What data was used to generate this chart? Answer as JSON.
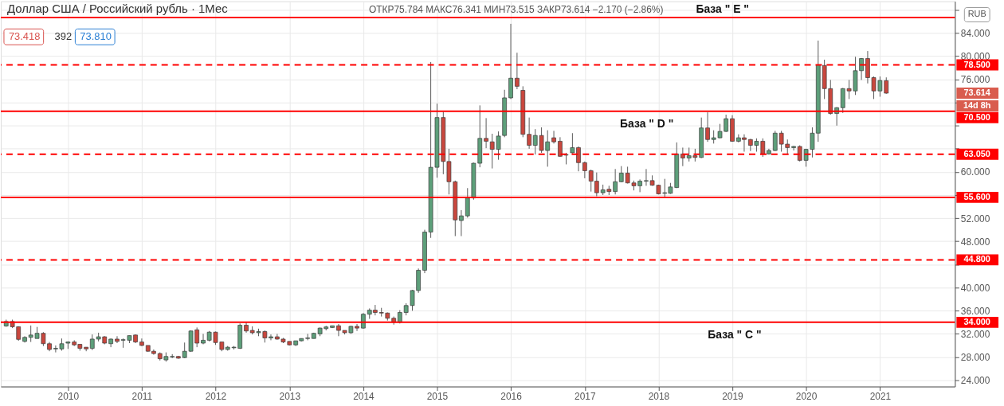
{
  "chart_data": {
    "type": "candlestick",
    "title": "Доллар США / Российский рубль · 1Мес",
    "subtitle": "ОТКР75.784 МАКС76.341 МИН73.515 ЗАКР73.614 −2.170 (−2.86%)",
    "ylabel": "RUB",
    "x": [
      "2009-03",
      "2009-04",
      "2009-05",
      "2009-06",
      "2009-07",
      "2009-08",
      "2009-09",
      "2009-10",
      "2009-11",
      "2009-12",
      "2010-01",
      "2010-02",
      "2010-03",
      "2010-04",
      "2010-05",
      "2010-06",
      "2010-07",
      "2010-08",
      "2010-09",
      "2010-10",
      "2010-11",
      "2010-12",
      "2011-01",
      "2011-02",
      "2011-03",
      "2011-04",
      "2011-05",
      "2011-06",
      "2011-07",
      "2011-08",
      "2011-09",
      "2011-10",
      "2011-11",
      "2011-12",
      "2012-01",
      "2012-02",
      "2012-03",
      "2012-04",
      "2012-05",
      "2012-06",
      "2012-07",
      "2012-08",
      "2012-09",
      "2012-10",
      "2012-11",
      "2012-12",
      "2013-01",
      "2013-02",
      "2013-03",
      "2013-04",
      "2013-05",
      "2013-06",
      "2013-07",
      "2013-08",
      "2013-09",
      "2013-10",
      "2013-11",
      "2013-12",
      "2014-01",
      "2014-02",
      "2014-03",
      "2014-04",
      "2014-05",
      "2014-06",
      "2014-07",
      "2014-08",
      "2014-09",
      "2014-10",
      "2014-11",
      "2014-12",
      "2015-01",
      "2015-02",
      "2015-03",
      "2015-04",
      "2015-05",
      "2015-06",
      "2015-07",
      "2015-08",
      "2015-09",
      "2015-10",
      "2015-11",
      "2015-12",
      "2016-01",
      "2016-02",
      "2016-03",
      "2016-04",
      "2016-05",
      "2016-06",
      "2016-07",
      "2016-08",
      "2016-09",
      "2016-10",
      "2016-11",
      "2016-12",
      "2017-01",
      "2017-02",
      "2017-03",
      "2017-04",
      "2017-05",
      "2017-06",
      "2017-07",
      "2017-08",
      "2017-09",
      "2017-10",
      "2017-11",
      "2017-12",
      "2018-01",
      "2018-02",
      "2018-03",
      "2018-04",
      "2018-05",
      "2018-06",
      "2018-07",
      "2018-08",
      "2018-09",
      "2018-10",
      "2018-11",
      "2018-12",
      "2019-01",
      "2019-02",
      "2019-03",
      "2019-04",
      "2019-05",
      "2019-06",
      "2019-07",
      "2019-08",
      "2019-09",
      "2019-10",
      "2019-11",
      "2019-12",
      "2020-01",
      "2020-02",
      "2020-03",
      "2020-04",
      "2020-05",
      "2020-06",
      "2020-07",
      "2020-08",
      "2020-09",
      "2020-10",
      "2020-11",
      "2020-12",
      "2021-01",
      "2021-02"
    ],
    "ohlc": [
      [
        33.36,
        34.46,
        33.23,
        34.14
      ],
      [
        34.14,
        34.46,
        33.0,
        33.23
      ],
      [
        33.23,
        33.3,
        30.8,
        31.05
      ],
      [
        30.7,
        31.6,
        30.5,
        31.4
      ],
      [
        31.4,
        33.45,
        30.6,
        31.8
      ],
      [
        31.2,
        33.2,
        31.2,
        32.1
      ],
      [
        32.1,
        32.3,
        29.9,
        30.3
      ],
      [
        30.3,
        30.6,
        29.0,
        29.3
      ],
      [
        29.4,
        30.0,
        28.8,
        29.5
      ],
      [
        29.4,
        31.2,
        29.1,
        30.3
      ],
      [
        30.4,
        30.7,
        29.4,
        30.6
      ],
      [
        30.6,
        30.9,
        29.9,
        30.1
      ],
      [
        30.2,
        30.2,
        29.1,
        29.5
      ],
      [
        29.7,
        29.7,
        29.0,
        29.4
      ],
      [
        29.5,
        31.9,
        29.2,
        31.1
      ],
      [
        31.1,
        32.2,
        30.7,
        31.5
      ],
      [
        31.5,
        31.6,
        30.2,
        30.4
      ],
      [
        30.3,
        31.2,
        29.7,
        31.1
      ],
      [
        31.1,
        31.6,
        30.4,
        30.7
      ],
      [
        30.9,
        31.2,
        29.6,
        31.0
      ],
      [
        30.9,
        31.7,
        30.4,
        31.7
      ],
      [
        31.8,
        31.9,
        30.4,
        30.6
      ],
      [
        30.6,
        31.2,
        29.9,
        30.0
      ],
      [
        30.0,
        30.0,
        28.9,
        29.0
      ],
      [
        29.0,
        29.3,
        28.4,
        28.6
      ],
      [
        28.6,
        28.8,
        27.4,
        27.7
      ],
      [
        27.5,
        28.8,
        27.2,
        28.1
      ],
      [
        28.0,
        28.5,
        27.8,
        28.1
      ],
      [
        28.1,
        28.2,
        27.7,
        27.8
      ],
      [
        27.9,
        30.5,
        27.8,
        29.0
      ],
      [
        29.0,
        32.6,
        28.9,
        32.5
      ],
      [
        32.7,
        33.1,
        29.7,
        30.4
      ],
      [
        30.4,
        32.0,
        30.2,
        30.9
      ],
      [
        30.9,
        32.5,
        30.7,
        32.3
      ],
      [
        32.3,
        32.4,
        30.1,
        30.5
      ],
      [
        30.6,
        30.6,
        29.0,
        29.3
      ],
      [
        29.3,
        29.9,
        29.1,
        29.7
      ],
      [
        29.6,
        29.9,
        29.3,
        29.7
      ],
      [
        29.5,
        33.8,
        29.4,
        33.5
      ],
      [
        33.5,
        34.0,
        32.2,
        32.5
      ],
      [
        32.6,
        33.3,
        31.9,
        32.2
      ],
      [
        32.2,
        32.9,
        31.6,
        32.4
      ],
      [
        32.4,
        32.6,
        30.5,
        31.3
      ],
      [
        31.3,
        31.9,
        30.9,
        31.5
      ],
      [
        31.5,
        32.0,
        31.0,
        31.1
      ],
      [
        31.1,
        31.3,
        30.4,
        30.6
      ],
      [
        30.7,
        30.7,
        30.0,
        30.1
      ],
      [
        30.1,
        30.8,
        29.9,
        30.8
      ],
      [
        30.8,
        31.2,
        30.7,
        31.2
      ],
      [
        31.2,
        32.0,
        30.9,
        31.3
      ],
      [
        31.2,
        32.2,
        31.2,
        32.1
      ],
      [
        32.0,
        33.1,
        31.6,
        33.0
      ],
      [
        32.9,
        33.4,
        32.6,
        33.2
      ],
      [
        33.1,
        33.4,
        33.0,
        33.4
      ],
      [
        33.4,
        33.7,
        31.6,
        32.6
      ],
      [
        32.6,
        32.6,
        31.9,
        32.2
      ],
      [
        32.2,
        33.4,
        32.0,
        33.3
      ],
      [
        33.3,
        33.7,
        32.5,
        33.0
      ],
      [
        33.0,
        35.6,
        32.9,
        35.4
      ],
      [
        35.4,
        36.4,
        34.6,
        36.1
      ],
      [
        36.1,
        37.0,
        35.2,
        35.7
      ],
      [
        35.7,
        36.5,
        35.0,
        35.6
      ],
      [
        35.6,
        35.7,
        34.3,
        34.7
      ],
      [
        34.7,
        35.0,
        33.6,
        34.0
      ],
      [
        34.0,
        36.1,
        33.8,
        35.7
      ],
      [
        35.7,
        37.3,
        35.2,
        36.9
      ],
      [
        36.9,
        39.6,
        36.0,
        39.5
      ],
      [
        39.5,
        43.3,
        39.1,
        43.0
      ],
      [
        43.0,
        50.0,
        42.5,
        49.6
      ],
      [
        49.6,
        79.0,
        48.6,
        60.8
      ],
      [
        60.8,
        71.8,
        59.0,
        69.4
      ],
      [
        69.4,
        70.4,
        59.6,
        61.8
      ],
      [
        61.8,
        64.0,
        56.1,
        58.3
      ],
      [
        58.3,
        58.5,
        48.9,
        51.7
      ],
      [
        51.6,
        53.4,
        48.9,
        52.4
      ],
      [
        52.4,
        57.2,
        52.1,
        55.5
      ],
      [
        55.5,
        61.6,
        55.2,
        61.5
      ],
      [
        61.5,
        71.5,
        60.8,
        65.8
      ],
      [
        65.8,
        69.3,
        64.1,
        65.3
      ],
      [
        65.2,
        66.6,
        60.6,
        63.9
      ],
      [
        63.9,
        67.0,
        62.1,
        66.2
      ],
      [
        66.3,
        74.2,
        66.0,
        72.8
      ],
      [
        72.8,
        85.6,
        72.6,
        76.2
      ],
      [
        76.2,
        80.6,
        74.3,
        74.8
      ],
      [
        74.1,
        74.8,
        66.0,
        66.5
      ],
      [
        66.5,
        69.4,
        64.0,
        64.6
      ],
      [
        64.6,
        67.4,
        63.0,
        66.3
      ],
      [
        66.3,
        67.7,
        63.3,
        63.7
      ],
      [
        63.7,
        67.2,
        60.9,
        65.2
      ],
      [
        65.9,
        67.1,
        64.9,
        65.2
      ],
      [
        65.3,
        66.0,
        62.6,
        62.7
      ],
      [
        62.9,
        63.3,
        61.3,
        63.0
      ],
      [
        63.3,
        66.7,
        63.2,
        64.2
      ],
      [
        64.2,
        64.4,
        60.1,
        61.6
      ],
      [
        61.6,
        61.8,
        58.9,
        60.2
      ],
      [
        60.2,
        60.4,
        56.6,
        58.4
      ],
      [
        58.4,
        59.9,
        55.8,
        56.4
      ],
      [
        56.4,
        57.8,
        56.0,
        56.9
      ],
      [
        57.0,
        57.6,
        56.0,
        56.6
      ],
      [
        56.6,
        60.5,
        56.1,
        58.3
      ],
      [
        58.3,
        61.0,
        58.2,
        59.8
      ],
      [
        59.8,
        60.9,
        58.0,
        58.1
      ],
      [
        58.1,
        58.5,
        56.8,
        57.6
      ],
      [
        57.6,
        58.7,
        56.5,
        58.4
      ],
      [
        58.4,
        60.5,
        57.6,
        58.5
      ],
      [
        58.5,
        59.4,
        57.6,
        57.7
      ],
      [
        57.7,
        57.8,
        56.1,
        56.2
      ],
      [
        56.3,
        58.8,
        55.6,
        56.4
      ],
      [
        56.3,
        58.1,
        56.2,
        57.4
      ],
      [
        57.3,
        65.1,
        57.2,
        63.1
      ],
      [
        63.1,
        64.2,
        61.0,
        62.4
      ],
      [
        62.4,
        64.2,
        61.8,
        62.8
      ],
      [
        62.8,
        64.0,
        61.8,
        62.5
      ],
      [
        62.5,
        69.4,
        62.4,
        67.6
      ],
      [
        67.6,
        70.3,
        65.2,
        65.6
      ],
      [
        65.6,
        67.2,
        64.9,
        65.9
      ],
      [
        65.9,
        68.3,
        65.8,
        67.0
      ],
      [
        67.0,
        69.9,
        66.9,
        69.2
      ],
      [
        69.2,
        69.8,
        65.2,
        65.3
      ],
      [
        65.3,
        66.5,
        65.1,
        65.9
      ],
      [
        65.9,
        66.5,
        63.5,
        65.6
      ],
      [
        65.6,
        65.7,
        63.6,
        64.6
      ],
      [
        64.6,
        65.8,
        63.5,
        65.3
      ],
      [
        65.3,
        65.8,
        62.6,
        63.1
      ],
      [
        63.1,
        64.0,
        63.0,
        63.7
      ],
      [
        63.7,
        67.1,
        63.6,
        66.7
      ],
      [
        66.7,
        67.1,
        63.5,
        64.8
      ],
      [
        64.8,
        65.6,
        63.1,
        64.2
      ],
      [
        64.2,
        64.5,
        63.7,
        64.4
      ],
      [
        64.4,
        64.6,
        61.8,
        62.0
      ],
      [
        62.0,
        64.0,
        60.9,
        63.9
      ],
      [
        63.9,
        67.7,
        62.5,
        66.7
      ],
      [
        66.7,
        82.7,
        65.2,
        78.5
      ],
      [
        78.4,
        79.4,
        72.6,
        74.4
      ],
      [
        74.4,
        75.9,
        69.9,
        70.1
      ],
      [
        70.1,
        71.2,
        68.0,
        71.1
      ],
      [
        71.1,
        74.5,
        70.2,
        74.4
      ],
      [
        74.4,
        75.9,
        72.6,
        74.0
      ],
      [
        74.0,
        79.9,
        73.3,
        77.5
      ],
      [
        77.5,
        79.7,
        75.9,
        79.6
      ],
      [
        79.6,
        80.9,
        75.3,
        76.3
      ],
      [
        76.3,
        76.5,
        72.6,
        74.0
      ],
      [
        74.0,
        76.5,
        73.0,
        75.8
      ],
      [
        75.784,
        76.341,
        73.515,
        73.614
      ]
    ],
    "colors": [
      "#5d9f7a",
      "#c9473e",
      "#c9473e",
      "#5d9f7a",
      "#5d9f7a",
      "#5d9f7a",
      "#c9473e",
      "#c9473e",
      "#5d9f7a",
      "#5d9f7a",
      "#5d9f7a",
      "#c9473e",
      "#c9473e",
      "#c9473e",
      "#5d9f7a",
      "#5d9f7a",
      "#c9473e",
      "#5d9f7a",
      "#c9473e",
      "#5d9f7a",
      "#5d9f7a",
      "#c9473e",
      "#c9473e",
      "#c9473e",
      "#c9473e",
      "#c9473e",
      "#5d9f7a",
      "#5d9f7a",
      "#c9473e",
      "#5d9f7a",
      "#5d9f7a",
      "#c9473e",
      "#5d9f7a",
      "#5d9f7a",
      "#c9473e",
      "#c9473e",
      "#5d9f7a",
      "#5d9f7a",
      "#5d9f7a",
      "#c9473e",
      "#c9473e",
      "#5d9f7a",
      "#c9473e",
      "#5d9f7a",
      "#c9473e",
      "#c9473e",
      "#c9473e",
      "#5d9f7a",
      "#5d9f7a",
      "#5d9f7a",
      "#5d9f7a",
      "#5d9f7a",
      "#5d9f7a",
      "#5d9f7a",
      "#c9473e",
      "#c9473e",
      "#5d9f7a",
      "#c9473e",
      "#5d9f7a",
      "#5d9f7a",
      "#c9473e",
      "#c9473e",
      "#c9473e",
      "#c9473e",
      "#5d9f7a",
      "#5d9f7a",
      "#5d9f7a",
      "#5d9f7a",
      "#5d9f7a",
      "#5d9f7a",
      "#5d9f7a",
      "#c9473e",
      "#c9473e",
      "#c9473e",
      "#5d9f7a",
      "#5d9f7a",
      "#5d9f7a",
      "#5d9f7a",
      "#c9473e",
      "#c9473e",
      "#5d9f7a",
      "#5d9f7a",
      "#5d9f7a",
      "#c9473e",
      "#c9473e",
      "#c9473e",
      "#5d9f7a",
      "#c9473e",
      "#5d9f7a",
      "#c9473e",
      "#c9473e",
      "#5d9f7a",
      "#5d9f7a",
      "#c9473e",
      "#c9473e",
      "#c9473e",
      "#c9473e",
      "#5d9f7a",
      "#c9473e",
      "#5d9f7a",
      "#5d9f7a",
      "#c9473e",
      "#c9473e",
      "#5d9f7a",
      "#5d9f7a",
      "#c9473e",
      "#c9473e",
      "#5d9f7a",
      "#5d9f7a",
      "#5d9f7a",
      "#c9473e",
      "#5d9f7a",
      "#c9473e",
      "#5d9f7a",
      "#c9473e",
      "#5d9f7a",
      "#5d9f7a",
      "#5d9f7a",
      "#c9473e",
      "#5d9f7a",
      "#c9473e",
      "#c9473e",
      "#5d9f7a",
      "#c9473e",
      "#5d9f7a",
      "#5d9f7a",
      "#c9473e",
      "#c9473e",
      "#5d9f7a",
      "#c9473e",
      "#5d9f7a",
      "#5d9f7a",
      "#5d9f7a",
      "#c9473e",
      "#c9473e",
      "#5d9f7a",
      "#5d9f7a",
      "#c9473e",
      "#5d9f7a",
      "#5d9f7a",
      "#c9473e",
      "#c9473e",
      "#5d9f7a",
      "#c9473e"
    ],
    "xlim": [
      "2009-02-22",
      "2021-12-18"
    ],
    "xticks": [
      "2010",
      "2011",
      "2012",
      "2013",
      "2014",
      "2015",
      "2016",
      "2017",
      "2018",
      "2019",
      "2020",
      "2021"
    ],
    "ylim": [
      22.9,
      89.5
    ],
    "yticks": [
      {
        "value": 24,
        "label": "24.000"
      },
      {
        "value": 28,
        "label": "28.000"
      },
      {
        "value": 32,
        "label": "32.000"
      },
      {
        "value": 36,
        "label": "36.000"
      },
      {
        "value": 40,
        "label": "40.000"
      },
      {
        "value": 44,
        "label": null
      },
      {
        "value": 48,
        "label": "48.000"
      },
      {
        "value": 52,
        "label": "52.000"
      },
      {
        "value": 56,
        "label": null
      },
      {
        "value": 60,
        "label": "60.000"
      },
      {
        "value": 64,
        "label": null
      },
      {
        "value": 68,
        "label": null
      },
      {
        "value": 72,
        "label": null
      },
      {
        "value": 76,
        "label": "76.000"
      },
      {
        "value": 80,
        "label": "80.000"
      },
      {
        "value": 84,
        "label": "84.000"
      },
      {
        "value": 88,
        "label": null
      }
    ],
    "grid": true,
    "ref_lines": [
      {
        "axis": "y",
        "value": 34,
        "label": "34.000",
        "color": "#ff0000",
        "line_style": "solid"
      },
      {
        "axis": "y",
        "value": 44.8,
        "label": "44.800",
        "color": "#ff0000",
        "line_style": "dashed"
      },
      {
        "axis": "y",
        "value": 55.6,
        "label": "55.600",
        "color": "#ff0000",
        "line_style": "solid"
      },
      {
        "axis": "y",
        "value": 63.05,
        "label": "63.050",
        "color": "#ff0000",
        "line_style": "dashed"
      },
      {
        "axis": "y",
        "value": 70.5,
        "label": "70.500",
        "color": "#ff0000",
        "line_style": "solid"
      },
      {
        "axis": "y",
        "value": 78.5,
        "label": "78.500",
        "color": "#ff0000",
        "line_style": "dashed"
      },
      {
        "axis": "y",
        "value": 86.7,
        "label": null,
        "color": "#ff0000",
        "line_style": "solid"
      }
    ],
    "annotations": [
      "База \" E \"",
      "База \" D \"",
      "База \" C \"",
      "73.614",
      "73.418",
      "392",
      "73.810",
      "14d 8h"
    ]
  }
}
